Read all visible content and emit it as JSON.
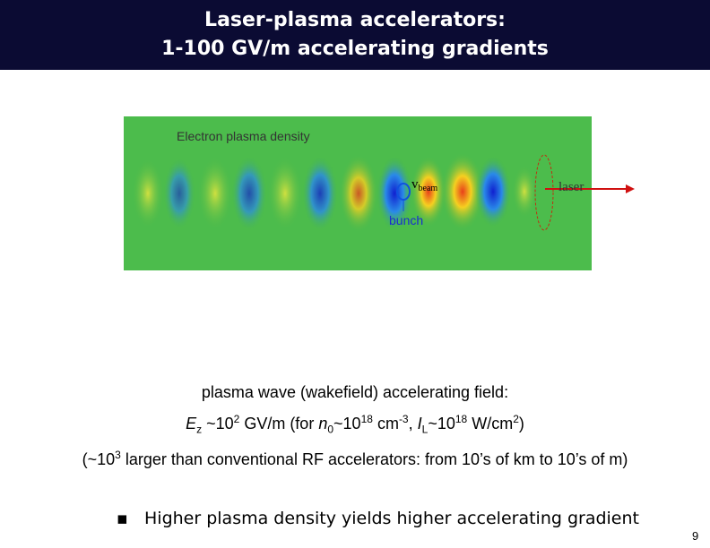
{
  "header": {
    "title_lines": [
      "Laser-plasma accelerators:",
      "1-100 GV/m  accelerating gradients"
    ]
  },
  "figure": {
    "caption": "Electron plasma density",
    "beam_symbol": "v",
    "beam_subscript": "beam",
    "laser": "laser",
    "bunch": "bunch"
  },
  "body": {
    "lines": [
      [
        {
          "t": "plasma wave (wakefield) accelerating field:"
        }
      ],
      [
        {
          "t": "E",
          "s": "i"
        },
        {
          "t": "z",
          "s": "sub"
        },
        {
          "t": " ~10"
        },
        {
          "t": "2",
          "s": "sup"
        },
        {
          "t": " GV/m  (for "
        },
        {
          "t": "n",
          "s": "i"
        },
        {
          "t": "0",
          "s": "sub"
        },
        {
          "t": "~10"
        },
        {
          "t": "18",
          "s": "sup"
        },
        {
          "t": " cm"
        },
        {
          "t": "-3",
          "s": "sup"
        },
        {
          "t": ", "
        },
        {
          "t": "I",
          "s": "i"
        },
        {
          "t": "L",
          "s": "sub"
        },
        {
          "t": "~10"
        },
        {
          "t": "18",
          "s": "sup"
        },
        {
          "t": " W/cm"
        },
        {
          "t": "2",
          "s": "sup"
        },
        {
          "t": ")"
        }
      ],
      [
        {
          "t": "(~10"
        },
        {
          "t": "3",
          "s": "sup"
        },
        {
          "t": " larger than conventional RF accelerators: from 10’s of km to 10’s of m)"
        }
      ]
    ],
    "bullet": "Higher plasma density yields higher accelerating gradient"
  },
  "footer": {
    "page": "9"
  }
}
